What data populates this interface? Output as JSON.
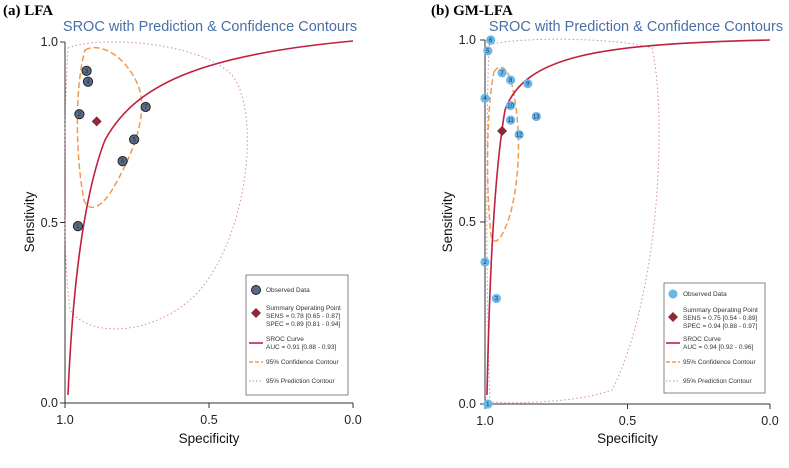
{
  "chart_data": [
    {
      "type": "scatter",
      "panel_label": "(a) LFA",
      "title": "SROC with Prediction & Confidence Contours",
      "xlabel": "Specificity",
      "ylabel": "Sensitivity",
      "xlim": [
        1.0,
        0.0
      ],
      "ylim": [
        0.0,
        1.0
      ],
      "xticks": [
        "1.0",
        "0.5",
        "0.0"
      ],
      "yticks": [
        "0.0",
        "0.5",
        "1.0"
      ],
      "marker_color": "#5a6a85",
      "points": [
        {
          "label": "1",
          "spec": 0.955,
          "sens": 0.49
        },
        {
          "label": "2",
          "spec": 0.95,
          "sens": 0.8
        },
        {
          "label": "3",
          "spec": 0.925,
          "sens": 0.92
        },
        {
          "label": "4",
          "spec": 0.92,
          "sens": 0.89
        },
        {
          "label": "5",
          "spec": 0.76,
          "sens": 0.73
        },
        {
          "label": "6",
          "spec": 0.8,
          "sens": 0.67
        },
        {
          "label": "7",
          "spec": 0.72,
          "sens": 0.82
        }
      ],
      "summary_point": {
        "spec": 0.89,
        "sens": 0.78
      },
      "legend": {
        "observed": "Observed Data",
        "summary_title": "Summary Operating Point",
        "summary_sens": "SENS = 0.78 [0.65 - 0.87]",
        "summary_spec": "SPEC = 0.89 [0.81 - 0.94]",
        "sroc_title": "SROC Curve",
        "sroc_auc": "AUC = 0.91 [0.88 - 0.93]",
        "confidence": "95% Confidence Contour",
        "prediction": "95% Prediction Contour"
      }
    },
    {
      "type": "scatter",
      "panel_label": "(b) GM-LFA",
      "title": "SROC with Prediction & Confidence Contours",
      "xlabel": "Specificity",
      "ylabel": "Sensitivity",
      "xlim": [
        1.0,
        0.0
      ],
      "ylim": [
        0.0,
        1.0
      ],
      "xticks": [
        "1.0",
        "0.5",
        "0.0"
      ],
      "yticks": [
        "0.0",
        "0.5",
        "1.0"
      ],
      "marker_color": "#6ab8e8",
      "points": [
        {
          "label": "1",
          "spec": 0.99,
          "sens": 0.0
        },
        {
          "label": "2",
          "spec": 1.0,
          "sens": 0.39
        },
        {
          "label": "3",
          "spec": 0.96,
          "sens": 0.29
        },
        {
          "label": "4",
          "spec": 1.0,
          "sens": 0.84
        },
        {
          "label": "5",
          "spec": 0.99,
          "sens": 0.97
        },
        {
          "label": "6",
          "spec": 0.98,
          "sens": 1.0
        },
        {
          "label": "7",
          "spec": 0.94,
          "sens": 0.91
        },
        {
          "label": "8",
          "spec": 0.91,
          "sens": 0.89
        },
        {
          "label": "9",
          "spec": 0.85,
          "sens": 0.88
        },
        {
          "label": "10",
          "spec": 0.91,
          "sens": 0.82
        },
        {
          "label": "11",
          "spec": 0.91,
          "sens": 0.78
        },
        {
          "label": "12",
          "spec": 0.88,
          "sens": 0.74
        },
        {
          "label": "13",
          "spec": 0.82,
          "sens": 0.79
        }
      ],
      "summary_point": {
        "spec": 0.94,
        "sens": 0.75
      },
      "legend": {
        "observed": "Observed Data",
        "summary_title": "Summary Operating Point",
        "summary_sens": "SENS = 0.75 [0.54 - 0.89]",
        "summary_spec": "SPEC = 0.94 [0.88 - 0.97]",
        "sroc_title": "SROC Curve",
        "sroc_auc": "AUC = 0.94 [0.92 - 0.96]",
        "confidence": "95% Confidence Contour",
        "prediction": "95% Prediction Contour"
      }
    }
  ]
}
